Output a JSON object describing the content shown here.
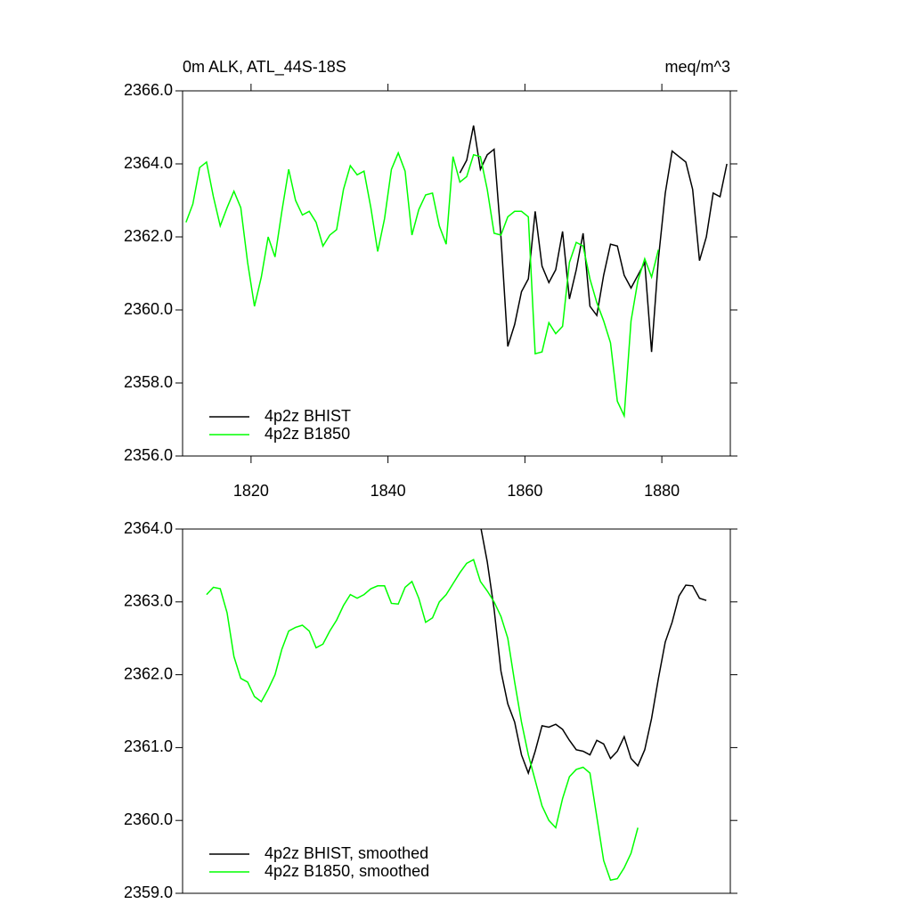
{
  "chart_data": [
    {
      "type": "line",
      "title": "0m ALK, ATL_44S-18S",
      "units": "meq/m^3",
      "xlim": [
        1810,
        1890
      ],
      "xticks": [
        1820,
        1840,
        1860,
        1880
      ],
      "ylim": [
        2356,
        2366
      ],
      "yticks": [
        {
          "value": 2356,
          "label": "2356.0"
        },
        {
          "value": 2358,
          "label": "2358.0"
        },
        {
          "value": 2360,
          "label": "2360.0"
        },
        {
          "value": 2362,
          "label": "2362.0"
        },
        {
          "value": 2364,
          "label": "2364.0"
        },
        {
          "value": 2366,
          "label": "2366.0"
        }
      ],
      "legend": "bottom-left",
      "series": [
        {
          "name": "4p2z BHIST",
          "color": "#000000",
          "x": [
            1850.5,
            1851.5,
            1852.5,
            1853.5,
            1854.5,
            1855.5,
            1856.5,
            1857.5,
            1858.5,
            1859.5,
            1860.5,
            1861.5,
            1862.5,
            1863.5,
            1864.5,
            1865.5,
            1866.5,
            1867.5,
            1868.5,
            1869.5,
            1870.5,
            1871.5,
            1872.5,
            1873.5,
            1874.5,
            1875.5,
            1876.5,
            1877.5,
            1878.5,
            1879.5,
            1880.5,
            1881.5,
            1882.5,
            1883.5,
            1884.5,
            1885.5,
            1886.5,
            1887.5,
            1888.5,
            1889.5
          ],
          "values": [
            2363.75,
            2364.1,
            2365.05,
            2363.85,
            2364.25,
            2364.4,
            2362.0,
            2359.0,
            2359.6,
            2360.5,
            2360.85,
            2362.7,
            2361.2,
            2360.75,
            2361.1,
            2362.15,
            2360.3,
            2361.1,
            2362.1,
            2360.1,
            2359.85,
            2360.95,
            2361.8,
            2361.75,
            2360.95,
            2360.6,
            2360.95,
            2361.3,
            2358.85,
            2361.4,
            2363.2,
            2364.35,
            2364.2,
            2364.05,
            2363.3,
            2361.35,
            2362.0,
            2363.2,
            2363.1,
            2364.0
          ]
        },
        {
          "name": "4p2z B1850",
          "color": "#00ff00",
          "x": [
            1810.5,
            1811.5,
            1812.5,
            1813.5,
            1814.5,
            1815.5,
            1816.5,
            1817.5,
            1818.5,
            1819.5,
            1820.5,
            1821.5,
            1822.5,
            1823.5,
            1824.5,
            1825.5,
            1826.5,
            1827.5,
            1828.5,
            1829.5,
            1830.5,
            1831.5,
            1832.5,
            1833.5,
            1834.5,
            1835.5,
            1836.5,
            1837.5,
            1838.5,
            1839.5,
            1840.5,
            1841.5,
            1842.5,
            1843.5,
            1844.5,
            1845.5,
            1846.5,
            1847.5,
            1848.5,
            1849.5,
            1850.5,
            1851.5,
            1852.5,
            1853.5,
            1854.5,
            1855.5,
            1856.5,
            1857.5,
            1858.5,
            1859.5,
            1860.5,
            1861.5,
            1862.5,
            1863.5,
            1864.5,
            1865.5,
            1866.5,
            1867.5,
            1868.5,
            1869.5,
            1870.5,
            1871.5,
            1872.5,
            1873.5,
            1874.5,
            1875.5,
            1876.5,
            1877.5,
            1878.5,
            1879.5
          ],
          "values": [
            2362.4,
            2362.9,
            2363.9,
            2364.05,
            2363.1,
            2362.3,
            2362.8,
            2363.25,
            2362.8,
            2361.3,
            2360.1,
            2360.9,
            2362.0,
            2361.45,
            2362.7,
            2363.85,
            2363.0,
            2362.6,
            2362.7,
            2362.4,
            2361.75,
            2362.05,
            2362.2,
            2363.3,
            2363.95,
            2363.7,
            2363.8,
            2362.8,
            2361.6,
            2362.5,
            2363.85,
            2364.3,
            2363.8,
            2362.05,
            2362.75,
            2363.15,
            2363.2,
            2362.3,
            2361.8,
            2364.2,
            2363.5,
            2363.65,
            2364.25,
            2364.2,
            2363.3,
            2362.1,
            2362.05,
            2362.55,
            2362.7,
            2362.7,
            2362.55,
            2358.8,
            2358.85,
            2359.65,
            2359.35,
            2359.55,
            2361.3,
            2361.85,
            2361.75,
            2360.85,
            2360.2,
            2359.7,
            2359.1,
            2357.5,
            2357.1,
            2359.7,
            2360.8,
            2361.4,
            2360.9,
            2361.65
          ]
        }
      ]
    },
    {
      "type": "line",
      "xlim": [
        1810,
        1890
      ],
      "ylim": [
        2359,
        2364
      ],
      "yticks": [
        {
          "value": 2359,
          "label": "2359.0"
        },
        {
          "value": 2360,
          "label": "2360.0"
        },
        {
          "value": 2361,
          "label": "2361.0"
        },
        {
          "value": 2362,
          "label": "2362.0"
        },
        {
          "value": 2363,
          "label": "2363.0"
        },
        {
          "value": 2364,
          "label": "2364.0"
        }
      ],
      "legend": "bottom-left",
      "series": [
        {
          "name": "4p2z BHIST, smoothed",
          "color": "#000000",
          "x": [
            1853.5,
            1854.5,
            1855.5,
            1856.5,
            1857.5,
            1858.5,
            1859.5,
            1860.5,
            1861.5,
            1862.5,
            1863.5,
            1864.5,
            1865.5,
            1866.5,
            1867.5,
            1868.5,
            1869.5,
            1870.5,
            1871.5,
            1872.5,
            1873.5,
            1874.5,
            1875.5,
            1876.5,
            1877.5,
            1878.5,
            1879.5,
            1880.5,
            1881.5,
            1882.5,
            1883.5,
            1884.5,
            1885.5,
            1886.5
          ],
          "values": [
            2364.05,
            2363.55,
            2362.9,
            2362.05,
            2361.6,
            2361.35,
            2360.9,
            2360.65,
            2360.95,
            2361.3,
            2361.28,
            2361.32,
            2361.25,
            2361.1,
            2360.97,
            2360.95,
            2360.9,
            2361.1,
            2361.05,
            2360.85,
            2360.95,
            2361.15,
            2360.85,
            2360.75,
            2360.97,
            2361.4,
            2361.95,
            2362.45,
            2362.72,
            2363.08,
            2363.23,
            2363.22,
            2363.05,
            2363.02
          ]
        },
        {
          "name": "4p2z B1850, smoothed",
          "color": "#00ff00",
          "x": [
            1813.5,
            1814.5,
            1815.5,
            1816.5,
            1817.5,
            1818.5,
            1819.5,
            1820.5,
            1821.5,
            1822.5,
            1823.5,
            1824.5,
            1825.5,
            1826.5,
            1827.5,
            1828.5,
            1829.5,
            1830.5,
            1831.5,
            1832.5,
            1833.5,
            1834.5,
            1835.5,
            1836.5,
            1837.5,
            1838.5,
            1839.5,
            1840.5,
            1841.5,
            1842.5,
            1843.5,
            1844.5,
            1845.5,
            1846.5,
            1847.5,
            1848.5,
            1849.5,
            1850.5,
            1851.5,
            1852.5,
            1853.5,
            1854.5,
            1855.5,
            1856.5,
            1857.5,
            1858.5,
            1859.5,
            1860.5,
            1861.5,
            1862.5,
            1863.5,
            1864.5,
            1865.5,
            1866.5,
            1867.5,
            1868.5,
            1869.5,
            1870.5,
            1871.5,
            1872.5,
            1873.5,
            1874.5,
            1875.5,
            1876.5
          ],
          "values": [
            2363.1,
            2363.2,
            2363.18,
            2362.85,
            2362.25,
            2361.95,
            2361.9,
            2361.7,
            2361.63,
            2361.8,
            2362.0,
            2362.35,
            2362.6,
            2362.65,
            2362.68,
            2362.6,
            2362.37,
            2362.42,
            2362.6,
            2362.75,
            2362.95,
            2363.1,
            2363.05,
            2363.1,
            2363.18,
            2363.22,
            2363.22,
            2362.98,
            2362.97,
            2363.2,
            2363.28,
            2363.05,
            2362.72,
            2362.78,
            2363.0,
            2363.1,
            2363.25,
            2363.4,
            2363.53,
            2363.58,
            2363.28,
            2363.15,
            2363.0,
            2362.8,
            2362.5,
            2361.9,
            2361.35,
            2360.9,
            2360.55,
            2360.2,
            2360.0,
            2359.9,
            2360.3,
            2360.6,
            2360.7,
            2360.73,
            2360.65,
            2360.05,
            2359.45,
            2359.18,
            2359.2,
            2359.35,
            2359.55,
            2359.9
          ]
        }
      ]
    }
  ]
}
